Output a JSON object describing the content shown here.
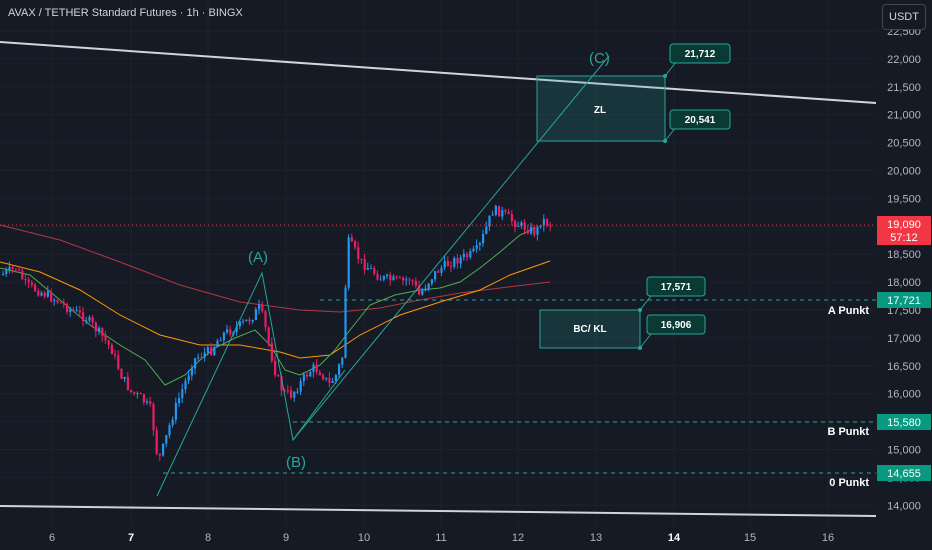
{
  "header": {
    "title": "AVAX / TETHER Standard Futures · 1h · BINGX",
    "currency_button": "USDT"
  },
  "axis": {
    "price_ticks": [
      "22,500",
      "22,000",
      "21,500",
      "21,000",
      "20,500",
      "20,000",
      "19,500",
      "19,000",
      "18,500",
      "18,000",
      "17,500",
      "17,000",
      "16,500",
      "16,000",
      "15,500",
      "15,000",
      "14,500",
      "14,000"
    ],
    "time_ticks": [
      "6",
      "7",
      "8",
      "9",
      "10",
      "11",
      "12",
      "13",
      "14",
      "15",
      "16"
    ],
    "bold_time_ticks": [
      "7",
      "14"
    ]
  },
  "current_price": {
    "value": "19,090",
    "countdown": "57:12",
    "color": "#f23645"
  },
  "levels": [
    {
      "price_label": "17,721",
      "name": "A Punkt"
    },
    {
      "price_label": "15,580",
      "name": "B Punkt"
    },
    {
      "price_label": "14,655",
      "name": "0 Punkt"
    }
  ],
  "zones": {
    "zl": {
      "label": "ZL",
      "upper_callout": "21,712",
      "lower_callout": "20,541"
    },
    "bc_kl": {
      "label": "BC/ KL",
      "upper_callout": "17,571",
      "lower_callout": "16,906"
    }
  },
  "wave_labels": {
    "a": "(A)",
    "b": "(B)",
    "c": "(C)"
  },
  "colors": {
    "background": "#161a25",
    "teal": "#26a69a",
    "teal_bright": "#089981",
    "bull": "#2196f3",
    "bear": "#e91e63",
    "orange_ma": "#ff9800",
    "red_ma": "#b2383f",
    "green_ma": "#4caf50"
  }
}
